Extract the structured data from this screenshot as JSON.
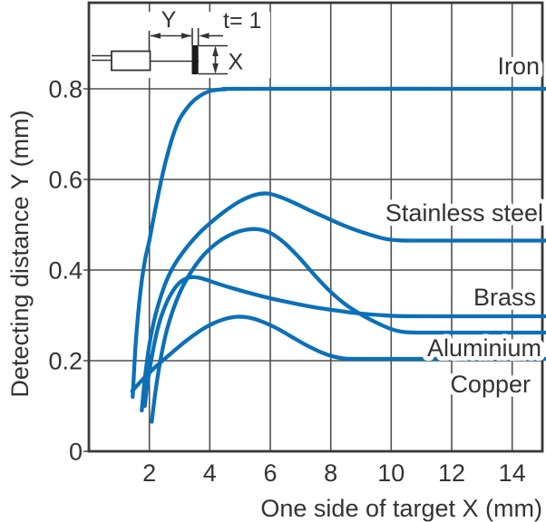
{
  "colors": {
    "curve_blue": "#0c70b8",
    "grid_gray": "#4f4f4f",
    "frame_gray": "#383838",
    "text_color": "#333333",
    "target_fill": "#1a1a1a"
  },
  "chart_data": {
    "type": "line",
    "title": "",
    "xlabel": "One side of target X (mm)",
    "ylabel": "Detecting distance Y (mm)",
    "xlim": [
      0,
      15
    ],
    "ylim": [
      0,
      0.99
    ],
    "x_ticks": [
      2,
      4,
      6,
      8,
      10,
      12,
      14
    ],
    "y_ticks": [
      0,
      0.2,
      0.4,
      0.6,
      0.8
    ],
    "grid": true,
    "legend_position": "labels-inline-right",
    "inset": {
      "y_label": "Y",
      "thickness_label": "t= 1",
      "x_label": "X"
    },
    "series": [
      {
        "name": "Iron",
        "final_value": 0.8,
        "points": [
          [
            1.45,
            0.12
          ],
          [
            1.55,
            0.24
          ],
          [
            1.7,
            0.35
          ],
          [
            1.85,
            0.42
          ],
          [
            2.0,
            0.465
          ],
          [
            2.2,
            0.535
          ],
          [
            2.4,
            0.6
          ],
          [
            2.6,
            0.655
          ],
          [
            2.8,
            0.7
          ],
          [
            3.0,
            0.733
          ],
          [
            3.3,
            0.762
          ],
          [
            3.6,
            0.781
          ],
          [
            4.0,
            0.795
          ],
          [
            4.5,
            0.799
          ],
          [
            5.5,
            0.8
          ],
          [
            15.15,
            0.8
          ]
        ]
      },
      {
        "name": "Stainless steel",
        "final_value": 0.465,
        "points": [
          [
            1.75,
            0.09
          ],
          [
            1.85,
            0.16
          ],
          [
            2.0,
            0.235
          ],
          [
            2.2,
            0.3
          ],
          [
            2.5,
            0.365
          ],
          [
            2.8,
            0.408
          ],
          [
            3.2,
            0.447
          ],
          [
            3.6,
            0.478
          ],
          [
            4.0,
            0.503
          ],
          [
            4.5,
            0.53
          ],
          [
            5.0,
            0.552
          ],
          [
            5.5,
            0.566
          ],
          [
            5.9,
            0.569
          ],
          [
            6.3,
            0.562
          ],
          [
            6.8,
            0.548
          ],
          [
            7.3,
            0.532
          ],
          [
            7.8,
            0.517
          ],
          [
            8.3,
            0.502
          ],
          [
            8.8,
            0.489
          ],
          [
            9.3,
            0.478
          ],
          [
            9.8,
            0.469
          ],
          [
            10.3,
            0.4655
          ],
          [
            11.5,
            0.465
          ],
          [
            13,
            0.465
          ],
          [
            15.15,
            0.465
          ]
        ]
      },
      {
        "name": "Brass",
        "final_value": 0.298,
        "points": [
          [
            1.85,
            0.1
          ],
          [
            1.95,
            0.155
          ],
          [
            2.1,
            0.215
          ],
          [
            2.3,
            0.277
          ],
          [
            2.55,
            0.325
          ],
          [
            2.8,
            0.356
          ],
          [
            3.05,
            0.375
          ],
          [
            3.35,
            0.384
          ],
          [
            3.65,
            0.383
          ],
          [
            3.95,
            0.377
          ],
          [
            4.35,
            0.368
          ],
          [
            4.85,
            0.358
          ],
          [
            5.45,
            0.347
          ],
          [
            6.05,
            0.337
          ],
          [
            6.75,
            0.327
          ],
          [
            7.45,
            0.318
          ],
          [
            8.15,
            0.311
          ],
          [
            8.85,
            0.305
          ],
          [
            9.55,
            0.301
          ],
          [
            10.3,
            0.2985
          ],
          [
            11.5,
            0.298
          ],
          [
            13,
            0.298
          ],
          [
            15.15,
            0.298
          ]
        ]
      },
      {
        "name": "Aluminium",
        "final_value": 0.262,
        "points": [
          [
            2.08,
            0.065
          ],
          [
            2.2,
            0.13
          ],
          [
            2.35,
            0.195
          ],
          [
            2.55,
            0.26
          ],
          [
            2.8,
            0.315
          ],
          [
            3.1,
            0.363
          ],
          [
            3.45,
            0.403
          ],
          [
            3.85,
            0.437
          ],
          [
            4.3,
            0.463
          ],
          [
            4.75,
            0.48
          ],
          [
            5.2,
            0.489
          ],
          [
            5.6,
            0.49
          ],
          [
            6.0,
            0.482
          ],
          [
            6.45,
            0.461
          ],
          [
            6.95,
            0.428
          ],
          [
            7.45,
            0.39
          ],
          [
            7.95,
            0.355
          ],
          [
            8.45,
            0.326
          ],
          [
            8.95,
            0.304
          ],
          [
            9.45,
            0.286
          ],
          [
            9.95,
            0.271
          ],
          [
            10.4,
            0.2635
          ],
          [
            11.0,
            0.262
          ],
          [
            12.5,
            0.262
          ],
          [
            15.15,
            0.262
          ]
        ]
      },
      {
        "name": "Copper",
        "final_value": 0.204,
        "points": [
          [
            1.43,
            0.133
          ],
          [
            1.8,
            0.16
          ],
          [
            2.2,
            0.186
          ],
          [
            2.7,
            0.215
          ],
          [
            3.2,
            0.243
          ],
          [
            3.7,
            0.267
          ],
          [
            4.1,
            0.282
          ],
          [
            4.5,
            0.292
          ],
          [
            4.9,
            0.297
          ],
          [
            5.3,
            0.295
          ],
          [
            5.7,
            0.287
          ],
          [
            6.2,
            0.272
          ],
          [
            6.7,
            0.253
          ],
          [
            7.2,
            0.234
          ],
          [
            7.7,
            0.218
          ],
          [
            8.1,
            0.209
          ],
          [
            8.5,
            0.2045
          ],
          [
            9.2,
            0.204
          ],
          [
            11,
            0.204
          ],
          [
            13,
            0.204
          ],
          [
            15.15,
            0.204
          ]
        ]
      }
    ]
  }
}
